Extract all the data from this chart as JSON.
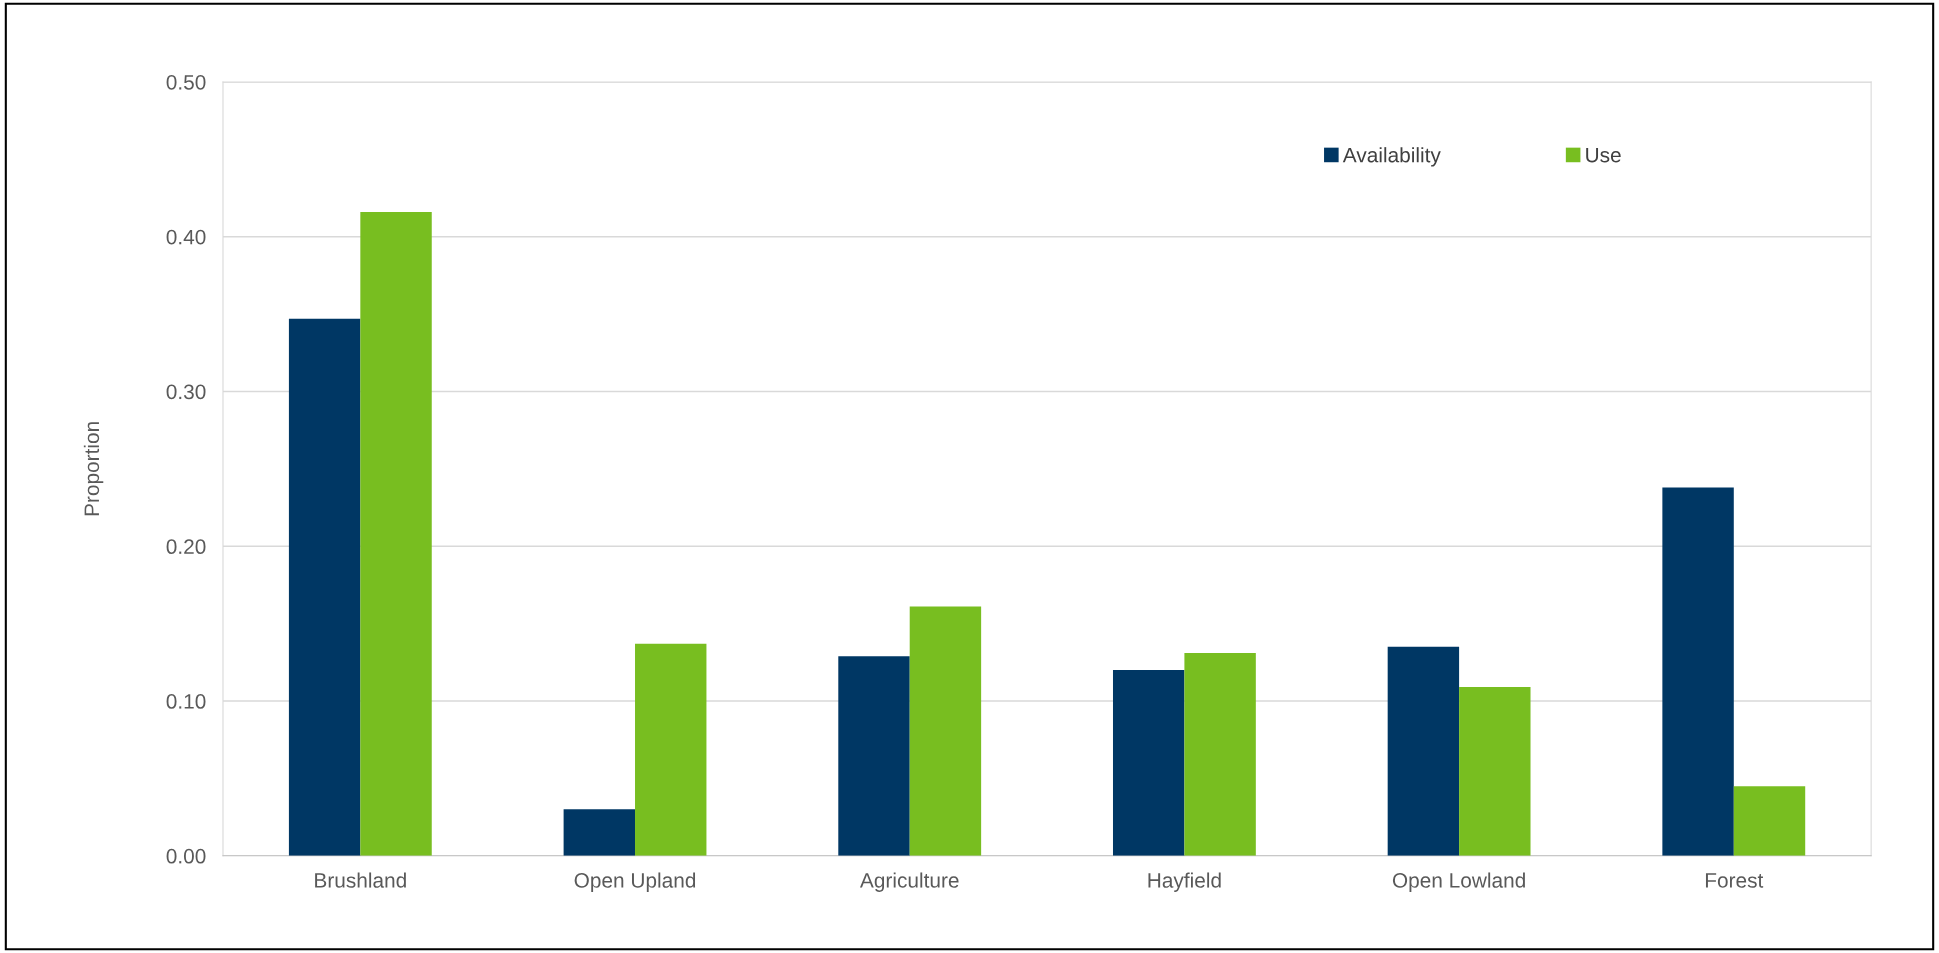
{
  "chart_data": {
    "type": "bar",
    "ylabel": "Proportion",
    "categories": [
      "Brushland",
      "Open Upland",
      "Agriculture",
      "Hayfield",
      "Open Lowland",
      "Forest"
    ],
    "series": [
      {
        "name": "Availability",
        "color": "#003764",
        "values": [
          0.347,
          0.03,
          0.129,
          0.12,
          0.135,
          0.238
        ]
      },
      {
        "name": "Use",
        "color": "#78be20",
        "values": [
          0.416,
          0.137,
          0.161,
          0.131,
          0.109,
          0.045
        ]
      }
    ],
    "ylim": [
      0,
      0.5
    ],
    "yticks": [
      {
        "value": 0,
        "label": "0.00"
      },
      {
        "value": 0.1,
        "label": "0.10"
      },
      {
        "value": 0.2,
        "label": "0.20"
      },
      {
        "value": 0.3,
        "label": "0.30"
      },
      {
        "value": 0.4,
        "label": "0.40"
      },
      {
        "value": 0.5,
        "label": "0.50"
      }
    ],
    "grid": "y",
    "legend": "top right"
  }
}
